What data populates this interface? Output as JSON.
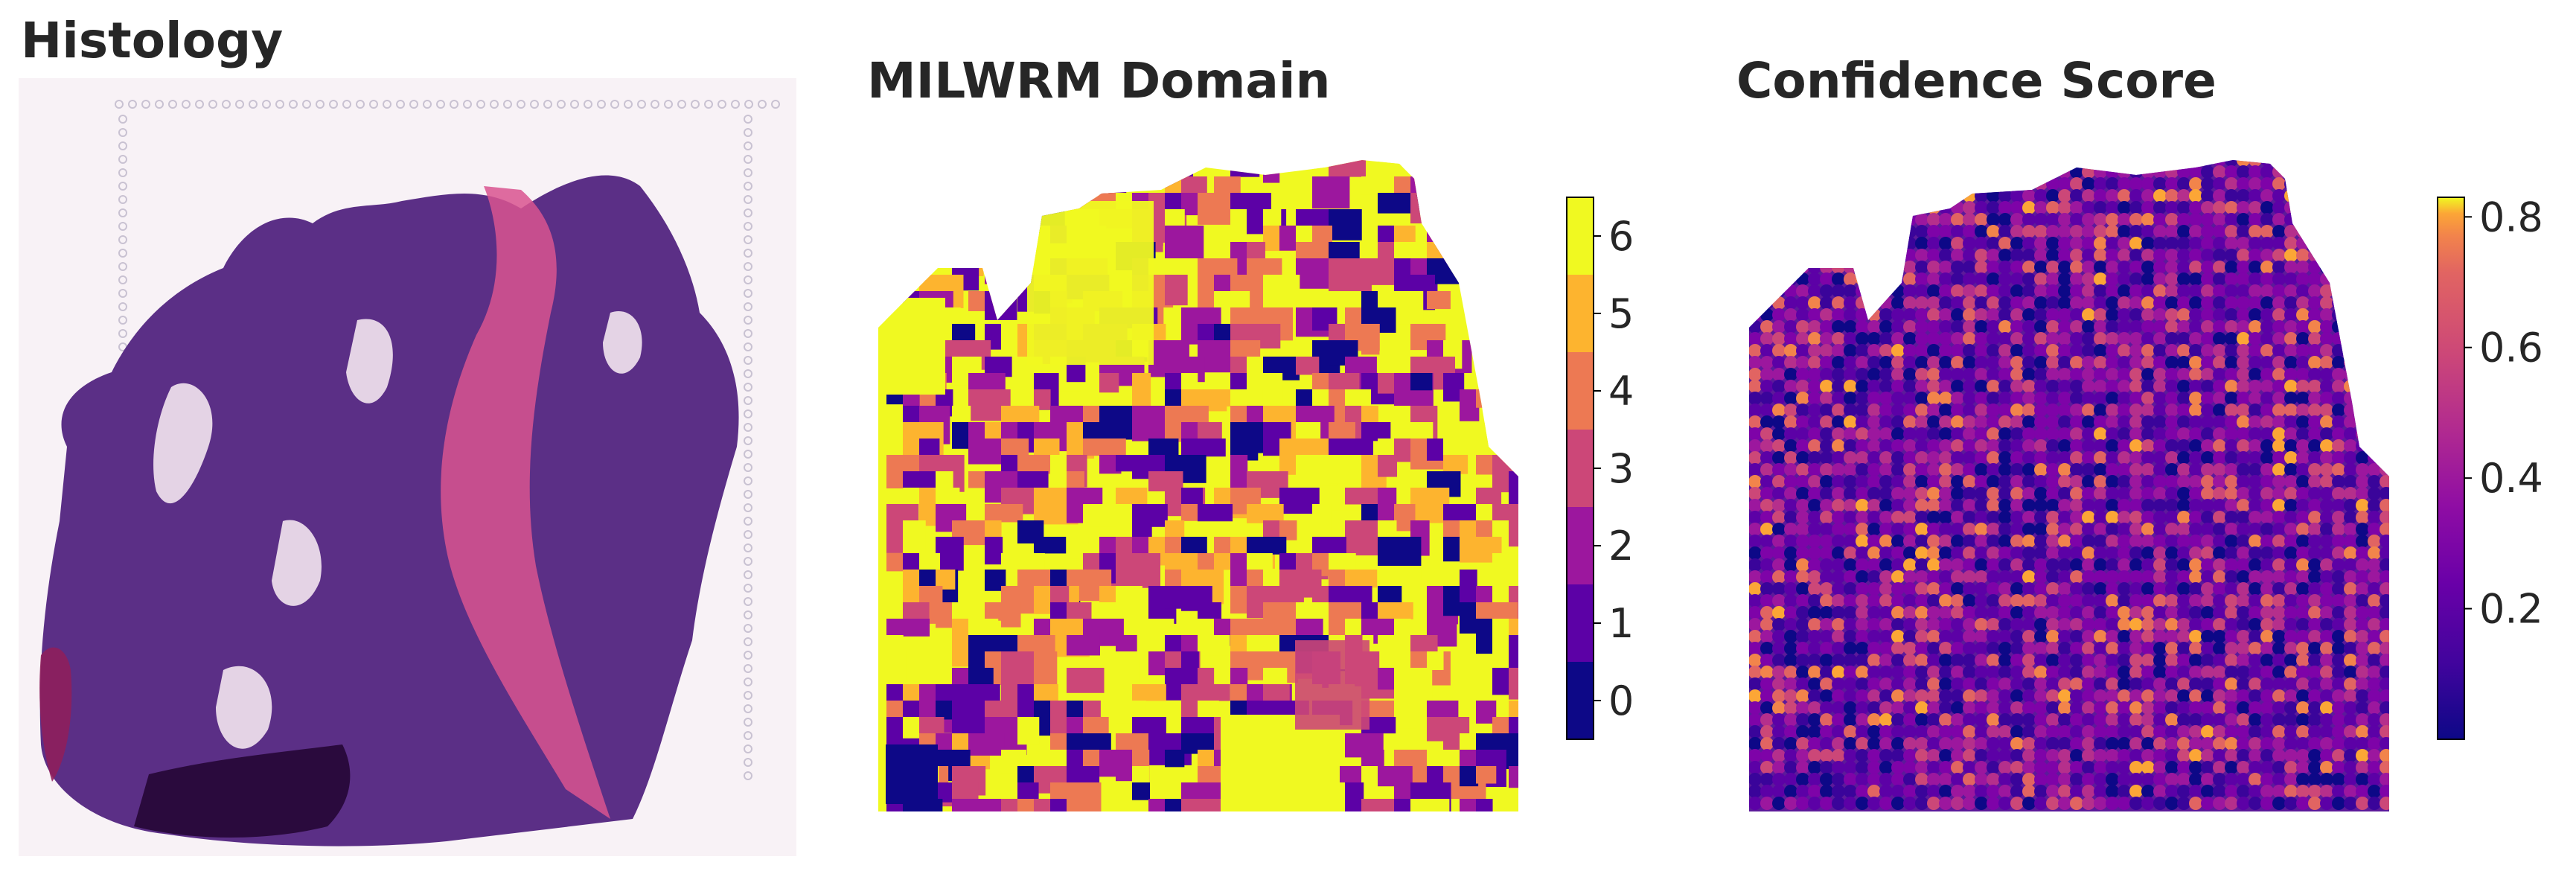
{
  "panels": {
    "histology": {
      "title": "Histology"
    },
    "domain": {
      "title": "MILWRM Domain"
    },
    "confidence": {
      "title": "Confidence Score"
    }
  },
  "chart_data": [
    {
      "type": "image",
      "title": "Histology"
    },
    {
      "type": "heatmap",
      "title": "MILWRM Domain",
      "colorbar": {
        "kind": "categorical",
        "ticks": [
          "0",
          "1",
          "2",
          "3",
          "4",
          "5",
          "6"
        ],
        "values": [
          0,
          1,
          2,
          3,
          4,
          5,
          6
        ],
        "colors": [
          "#0d0887",
          "#5c01a6",
          "#9c179e",
          "#cc4778",
          "#ed7953",
          "#fdb42f",
          "#f0f921"
        ]
      }
    },
    {
      "type": "heatmap",
      "title": "Confidence Score",
      "colorbar": {
        "kind": "continuous",
        "range": [
          0.0,
          0.83
        ],
        "ticks": [
          "0.2",
          "0.4",
          "0.6",
          "0.8"
        ],
        "tick_values": [
          0.2,
          0.4,
          0.6,
          0.8
        ],
        "colormap": "plasma"
      }
    }
  ],
  "colors": {
    "title": "#262626",
    "tissue_purple": "#5b2f86",
    "stroma_pink": "#d9538f"
  }
}
